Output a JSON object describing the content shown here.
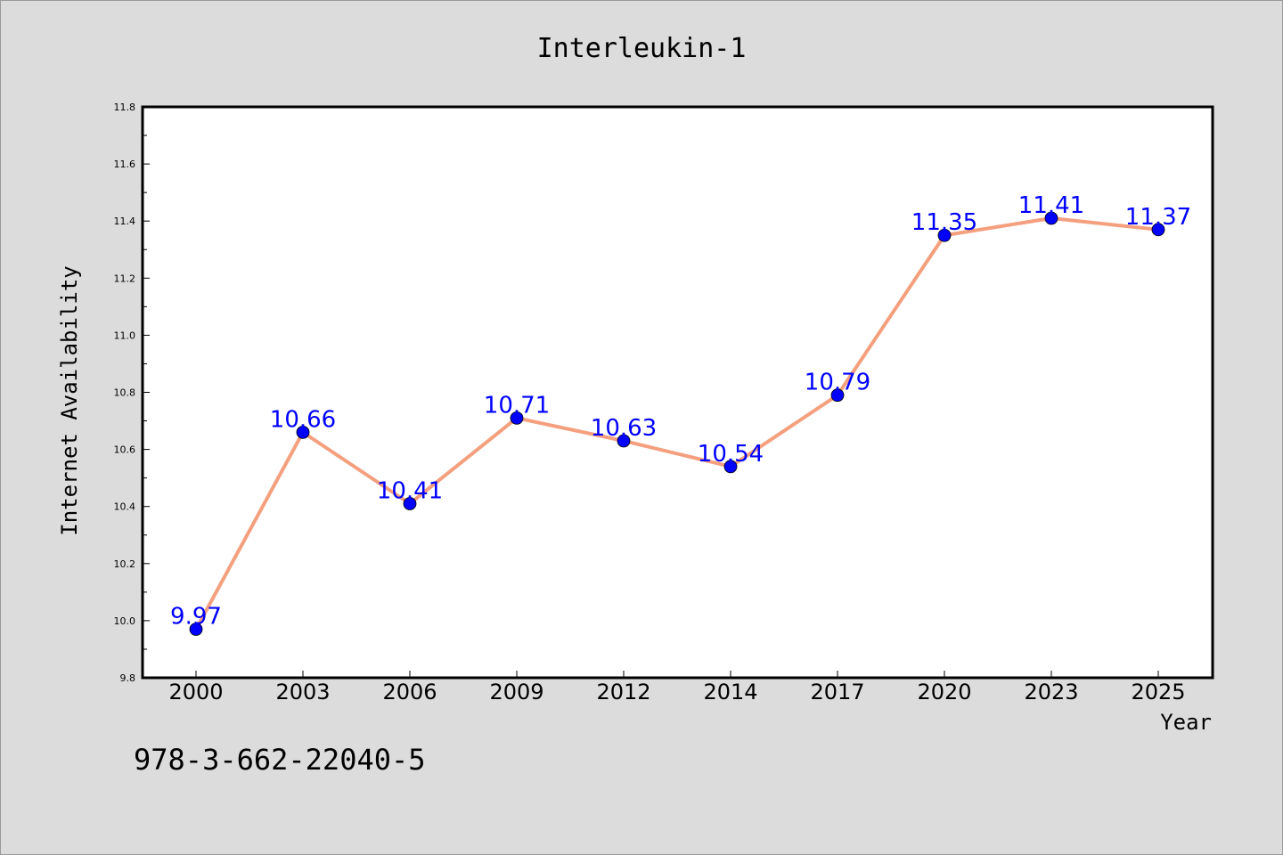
{
  "chart_data": {
    "type": "line",
    "title": "Interleukin-1",
    "xlabel": "Year",
    "ylabel": "Internet Availability",
    "categories": [
      "2000",
      "2003",
      "2006",
      "2009",
      "2012",
      "2014",
      "2017",
      "2020",
      "2023",
      "2025"
    ],
    "values": [
      9.97,
      10.66,
      10.41,
      10.71,
      10.63,
      10.54,
      10.79,
      11.35,
      11.41,
      11.37
    ],
    "data_labels": [
      "9.97",
      "10.66",
      "10.41",
      "10.71",
      "10.63",
      "10.54",
      "10.79",
      "11.35",
      "11.41",
      "11.37"
    ],
    "ylim": [
      9.8,
      11.8
    ],
    "yticks": [
      "9.8",
      "10.0",
      "10.2",
      "10.4",
      "10.6",
      "10.8",
      "11.0",
      "11.2",
      "11.4",
      "11.6",
      "11.8"
    ],
    "grid": false,
    "line_color": "#f4a07e",
    "marker_color": "#0000ff",
    "label_color": "#0000ff"
  },
  "annotation": "978-3-662-22040-5"
}
